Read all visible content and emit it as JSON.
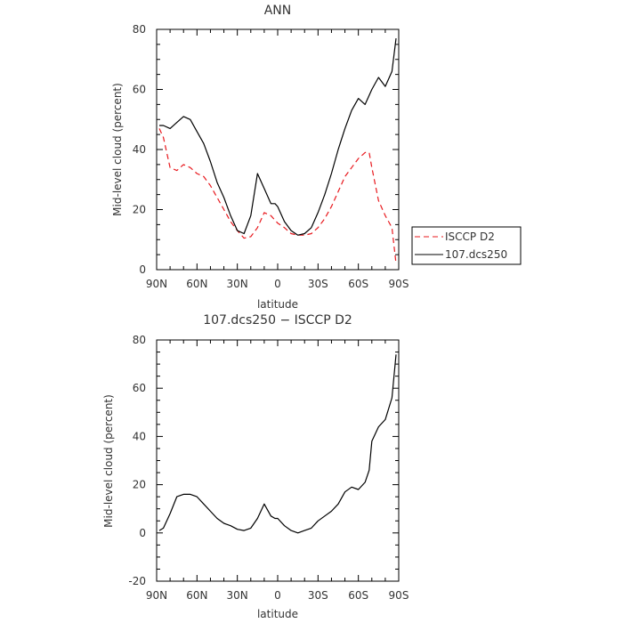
{
  "chart_data": [
    {
      "type": "line",
      "title": "ANN",
      "xlabel": "latitude",
      "ylabel": "Mid-level cloud (percent)",
      "ylim": [
        0,
        80
      ],
      "yticks": [
        0,
        20,
        40,
        60,
        80
      ],
      "x_range": [
        90,
        -90
      ],
      "xticks": [
        {
          "value": 90,
          "label": "90N"
        },
        {
          "value": 60,
          "label": "60N"
        },
        {
          "value": 30,
          "label": "30N"
        },
        {
          "value": 0,
          "label": "0"
        },
        {
          "value": -30,
          "label": "30S"
        },
        {
          "value": -60,
          "label": "60S"
        },
        {
          "value": -90,
          "label": "90S"
        }
      ],
      "legend_position": "right",
      "series": [
        {
          "name": "ISCCP D2",
          "color": "#e8191e",
          "dash": "6,4",
          "x": [
            88,
            85,
            80,
            75,
            70,
            65,
            60,
            55,
            50,
            45,
            40,
            35,
            30,
            25,
            20,
            15,
            10,
            5,
            0,
            -5,
            -10,
            -15,
            -20,
            -25,
            -30,
            -35,
            -40,
            -45,
            -50,
            -55,
            -60,
            -65,
            -68,
            -70,
            -75,
            -80,
            -85,
            -88
          ],
          "y": [
            47,
            44,
            34,
            33,
            35,
            34,
            32,
            31,
            28,
            24,
            20,
            16,
            13,
            10.5,
            11,
            14,
            19,
            18,
            15.5,
            14,
            12,
            11.5,
            11.5,
            12,
            14,
            17,
            21,
            26,
            31,
            34,
            37,
            39,
            39,
            34,
            23,
            18,
            14,
            2
          ]
        },
        {
          "name": "107.dcs250",
          "color": "#000000",
          "dash": "",
          "x": [
            88,
            85,
            80,
            75,
            70,
            65,
            60,
            55,
            50,
            45,
            40,
            35,
            30,
            25,
            20,
            15,
            10,
            5,
            2,
            0,
            -5,
            -10,
            -15,
            -20,
            -25,
            -30,
            -35,
            -40,
            -45,
            -50,
            -55,
            -60,
            -65,
            -70,
            -75,
            -80,
            -85,
            -88
          ],
          "y": [
            48,
            48,
            47,
            49,
            51,
            50,
            46,
            42,
            36,
            29,
            24,
            18,
            13,
            12,
            18,
            32,
            27,
            22,
            22,
            21,
            16,
            13,
            11.5,
            12,
            14,
            19,
            25,
            32,
            40,
            47,
            53,
            57,
            55,
            60,
            64,
            61,
            66,
            77
          ]
        }
      ]
    },
    {
      "type": "line",
      "title": "107.dcs250 − ISCCP D2",
      "xlabel": "latitude",
      "ylabel": "Mid-level cloud (percent)",
      "ylim": [
        -20,
        80
      ],
      "yticks": [
        -20,
        0,
        20,
        40,
        60,
        80
      ],
      "x_range": [
        90,
        -90
      ],
      "xticks": [
        {
          "value": 90,
          "label": "90N"
        },
        {
          "value": 60,
          "label": "60N"
        },
        {
          "value": 30,
          "label": "30N"
        },
        {
          "value": 0,
          "label": "0"
        },
        {
          "value": -30,
          "label": "30S"
        },
        {
          "value": -60,
          "label": "60S"
        },
        {
          "value": -90,
          "label": "90S"
        }
      ],
      "series": [
        {
          "color": "#000000",
          "dash": "",
          "x": [
            88,
            85,
            80,
            75,
            70,
            65,
            60,
            55,
            50,
            45,
            40,
            35,
            30,
            25,
            20,
            15,
            10,
            5,
            2,
            0,
            -5,
            -10,
            -15,
            -20,
            -25,
            -30,
            -35,
            -40,
            -45,
            -50,
            -55,
            -60,
            -65,
            -68,
            -70,
            -75,
            -80,
            -85,
            -88
          ],
          "y": [
            1,
            2,
            8,
            15,
            16,
            16,
            15,
            12,
            9,
            6,
            4,
            3,
            1.5,
            1,
            2,
            6,
            12,
            7,
            6,
            6,
            3,
            1,
            0,
            1,
            2,
            5,
            7,
            9,
            12,
            17,
            19,
            18,
            21,
            26,
            38,
            44,
            47,
            56,
            74
          ]
        }
      ]
    }
  ]
}
